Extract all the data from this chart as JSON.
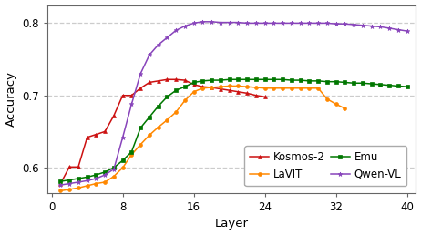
{
  "title": "",
  "xlabel": "Layer",
  "ylabel": "Accuracy",
  "ylim": [
    0.565,
    0.825
  ],
  "xlim": [
    -0.5,
    41
  ],
  "yticks": [
    0.6,
    0.7,
    0.8
  ],
  "xticks": [
    0,
    8,
    16,
    24,
    32,
    40
  ],
  "grid_color": "#cccccc",
  "background_color": "#ffffff",
  "series": [
    {
      "name": "Kosmos-2",
      "color": "#cc1111",
      "marker": "^",
      "markersize": 2.8,
      "x": [
        1,
        2,
        3,
        4,
        5,
        6,
        7,
        8,
        9,
        10,
        11,
        12,
        13,
        14,
        15,
        16,
        17,
        18,
        19,
        20,
        21,
        22,
        23,
        24
      ],
      "y": [
        0.578,
        0.601,
        0.601,
        0.642,
        0.646,
        0.65,
        0.672,
        0.7,
        0.7,
        0.71,
        0.718,
        0.72,
        0.722,
        0.722,
        0.721,
        0.715,
        0.712,
        0.711,
        0.709,
        0.707,
        0.705,
        0.703,
        0.7,
        0.698
      ]
    },
    {
      "name": "LaVIT",
      "color": "#ff8800",
      "marker": "o",
      "markersize": 2.8,
      "x": [
        1,
        2,
        3,
        4,
        5,
        6,
        7,
        8,
        9,
        10,
        11,
        12,
        13,
        14,
        15,
        16,
        17,
        18,
        19,
        20,
        21,
        22,
        23,
        24,
        25,
        26,
        27,
        28,
        29,
        30,
        31,
        32,
        33
      ],
      "y": [
        0.568,
        0.57,
        0.572,
        0.575,
        0.578,
        0.58,
        0.588,
        0.6,
        0.618,
        0.632,
        0.645,
        0.656,
        0.666,
        0.677,
        0.693,
        0.705,
        0.71,
        0.711,
        0.712,
        0.713,
        0.713,
        0.712,
        0.711,
        0.71,
        0.71,
        0.71,
        0.71,
        0.71,
        0.71,
        0.71,
        0.695,
        0.688,
        0.682
      ]
    },
    {
      "name": "Emu",
      "color": "#007700",
      "marker": "s",
      "markersize": 2.8,
      "x": [
        1,
        2,
        3,
        4,
        5,
        6,
        7,
        8,
        9,
        10,
        11,
        12,
        13,
        14,
        15,
        16,
        17,
        18,
        19,
        20,
        21,
        22,
        23,
        24,
        25,
        26,
        27,
        28,
        29,
        30,
        31,
        32,
        33,
        34,
        35,
        36,
        37,
        38,
        39,
        40
      ],
      "y": [
        0.581,
        0.583,
        0.585,
        0.587,
        0.59,
        0.594,
        0.6,
        0.61,
        0.622,
        0.655,
        0.67,
        0.685,
        0.698,
        0.707,
        0.712,
        0.718,
        0.72,
        0.721,
        0.721,
        0.722,
        0.722,
        0.722,
        0.722,
        0.722,
        0.722,
        0.722,
        0.721,
        0.721,
        0.72,
        0.72,
        0.719,
        0.719,
        0.718,
        0.717,
        0.717,
        0.716,
        0.715,
        0.714,
        0.713,
        0.712
      ]
    },
    {
      "name": "Qwen-VL",
      "color": "#8844bb",
      "marker": "*",
      "markersize": 3.5,
      "x": [
        1,
        2,
        3,
        4,
        5,
        6,
        7,
        8,
        9,
        10,
        11,
        12,
        13,
        14,
        15,
        16,
        17,
        18,
        19,
        20,
        21,
        22,
        23,
        24,
        25,
        26,
        27,
        28,
        29,
        30,
        31,
        32,
        33,
        34,
        35,
        36,
        37,
        38,
        39,
        40
      ],
      "y": [
        0.576,
        0.578,
        0.58,
        0.582,
        0.585,
        0.59,
        0.598,
        0.642,
        0.688,
        0.73,
        0.756,
        0.77,
        0.78,
        0.79,
        0.796,
        0.8,
        0.802,
        0.802,
        0.801,
        0.801,
        0.801,
        0.8,
        0.8,
        0.8,
        0.8,
        0.8,
        0.8,
        0.8,
        0.8,
        0.8,
        0.8,
        0.799,
        0.799,
        0.798,
        0.797,
        0.796,
        0.795,
        0.793,
        0.791,
        0.789
      ]
    }
  ],
  "legend_order": [
    "Kosmos-2",
    "LaVIT",
    "Emu",
    "Qwen-VL"
  ],
  "legend_ncol": 2,
  "legend_fontsize": 8.5
}
